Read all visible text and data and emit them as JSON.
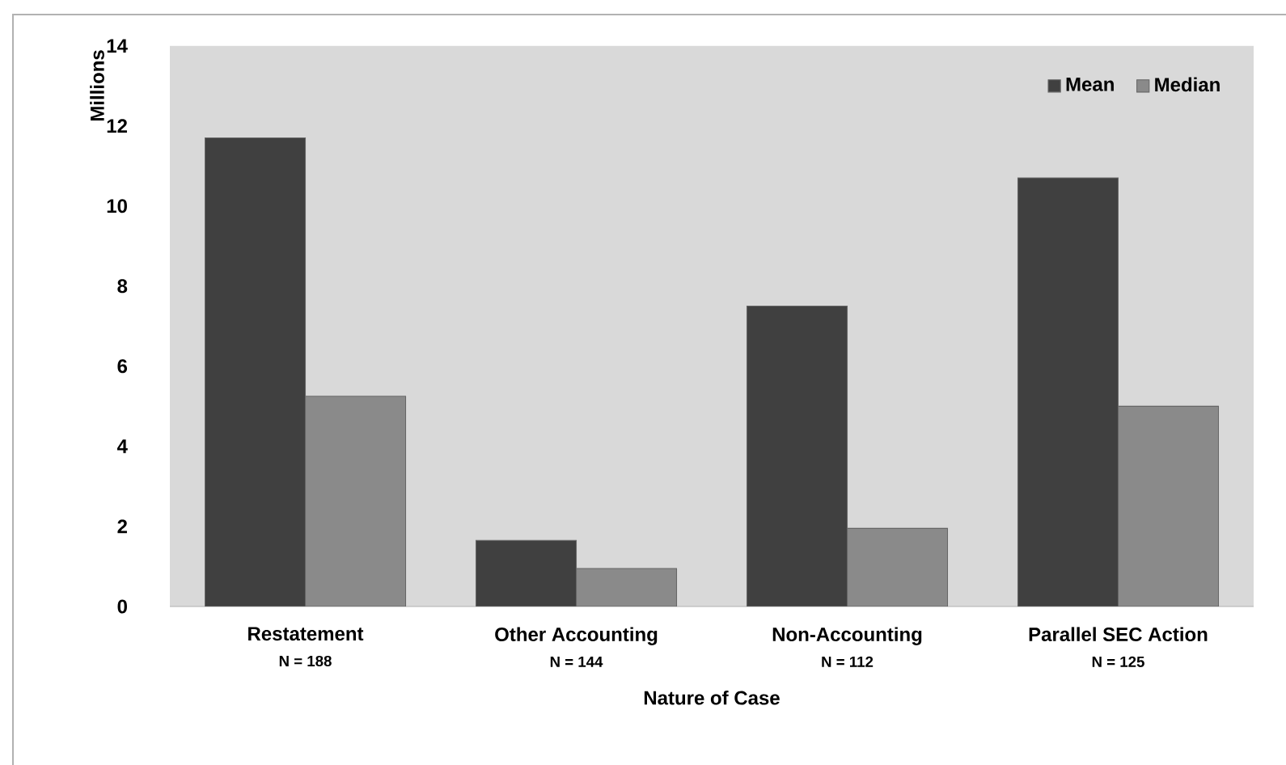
{
  "chart_data": {
    "type": "bar",
    "xlabel": "Nature of Case",
    "ylabel": "Millions",
    "categories": [
      "Restatement",
      "Other Accounting",
      "Non-Accounting",
      "Parallel SEC Action"
    ],
    "annotations": [
      "N = 188",
      "N = 144",
      "N = 112",
      "N = 125"
    ],
    "series": [
      {
        "name": "Mean",
        "color": "#404040",
        "values": [
          11.7,
          1.65,
          7.5,
          10.7
        ]
      },
      {
        "name": "Median",
        "color": "#8a8a8a",
        "values": [
          5.25,
          0.95,
          1.95,
          5.0
        ]
      }
    ],
    "ylim": [
      0,
      14
    ],
    "yticks": [
      0,
      2,
      4,
      6,
      8,
      10,
      12,
      14
    ],
    "legend": "top right"
  }
}
